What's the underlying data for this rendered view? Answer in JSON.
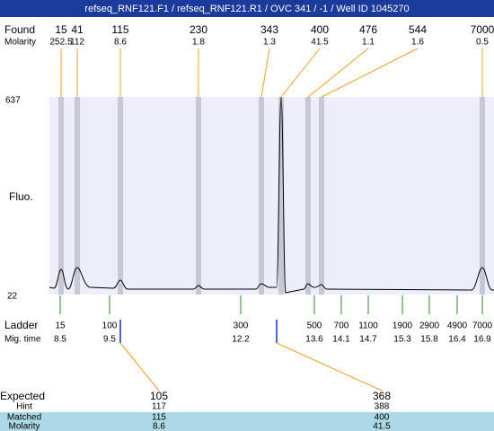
{
  "header": {
    "title": "refseq_RNF121.F1 / refseq_RNF121.R1 / OVC 341 / -1 / Well ID 1045270"
  },
  "found": {
    "label": "Found",
    "sizes": [
      15,
      41,
      115,
      230,
      343,
      400,
      476,
      544,
      7000
    ],
    "molarity_label": "Molarity",
    "molarity": [
      252.5,
      112,
      8.6,
      1.8,
      1.3,
      41.5,
      1.1,
      1.6,
      0.5
    ]
  },
  "plot": {
    "y_label": "Fluo.",
    "y_max": 637,
    "y_min": 22
  },
  "ladder": {
    "label": "Ladder",
    "sizes": [
      15,
      100,
      300,
      500,
      700,
      1100,
      1900,
      2900,
      4900,
      7000
    ],
    "mig_label": "Mig. time",
    "mig_times": [
      8.5,
      9.5,
      12.2,
      13.6,
      14.1,
      14.7,
      15.3,
      15.8,
      16.4,
      16.9
    ]
  },
  "expected": {
    "label": "Expected",
    "values": [
      105,
      368
    ],
    "hint_label": "Hint",
    "hint": [
      117,
      388
    ],
    "matched_label": "Matched",
    "matched": [
      115,
      400
    ],
    "molarity_label": "Molarity",
    "molarity": [
      8.6,
      41.5
    ]
  }
}
